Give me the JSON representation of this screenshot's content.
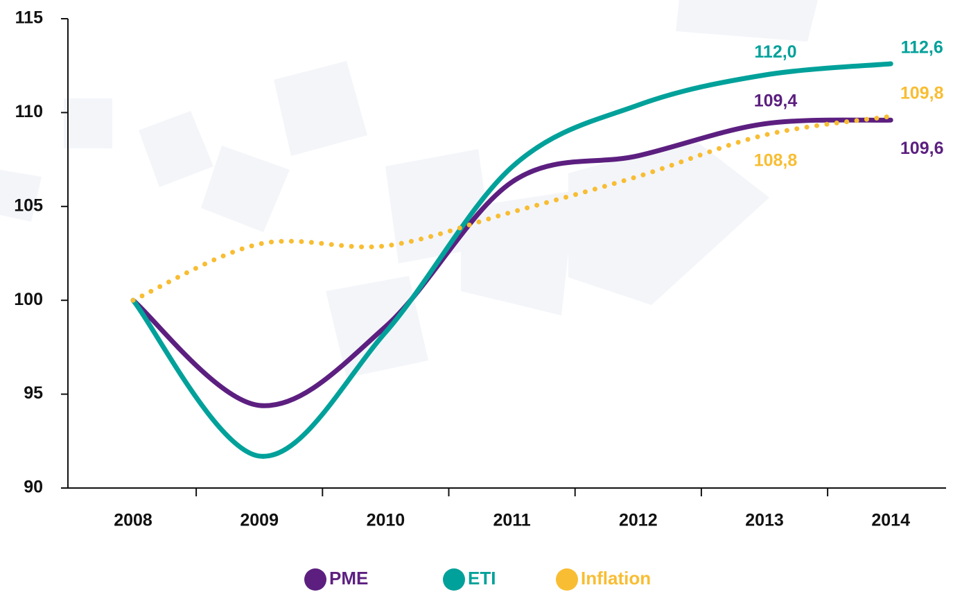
{
  "chart_data": {
    "type": "line",
    "categories": [
      "2008",
      "2009",
      "2010",
      "2011",
      "2012",
      "2013",
      "2014"
    ],
    "series": [
      {
        "name": "PME",
        "color": "#5c1f80",
        "values": [
          100,
          94.4,
          98.6,
          106.3,
          107.7,
          109.4,
          109.6
        ],
        "value_labels": [
          null,
          null,
          null,
          null,
          null,
          "109,4",
          "109,6"
        ]
      },
      {
        "name": "ETI",
        "color": "#00a19a",
        "values": [
          100,
          91.7,
          98.3,
          107.1,
          110.4,
          112.0,
          112.6
        ],
        "value_labels": [
          null,
          null,
          null,
          null,
          null,
          "112,0",
          "112,6"
        ]
      },
      {
        "name": "Inflation",
        "color": "#f8bd32",
        "values": [
          100,
          103.0,
          102.9,
          104.7,
          106.6,
          108.8,
          109.8
        ],
        "dotted": true,
        "value_labels": [
          null,
          null,
          null,
          null,
          null,
          "108,8",
          "109,8"
        ]
      }
    ],
    "ylim": [
      90,
      115
    ],
    "yticks": [
      90,
      95,
      100,
      105,
      110,
      115
    ],
    "legend": "bottom"
  }
}
